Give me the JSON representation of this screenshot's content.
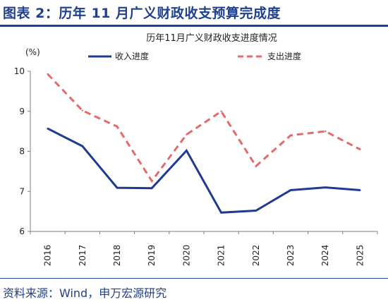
{
  "header": {
    "title": "图表 2：历年 11 月广义财政收支预算完成度"
  },
  "footer": {
    "source": "资料来源：Wind，申万宏源研究"
  },
  "colors": {
    "income": "#1f3a93",
    "expense": "#e46b6b",
    "header": "#1f3f8f"
  },
  "chart_data": {
    "type": "line",
    "title": "历年11月广义财政收支进度情况",
    "yunit": "(%)",
    "ylim": [
      6,
      10
    ],
    "yticks": [
      6,
      7,
      8,
      9,
      10
    ],
    "grid": false,
    "legend_position": "top",
    "x": [
      "2016",
      "2017",
      "2018",
      "2019",
      "2020",
      "2021",
      "2022",
      "2023",
      "2024",
      "2025"
    ],
    "series": [
      {
        "name": "收入进度",
        "style": "solid",
        "values": [
          8.57,
          8.13,
          7.09,
          7.08,
          8.02,
          6.47,
          6.52,
          7.03,
          7.1,
          7.03
        ]
      },
      {
        "name": "支出进度",
        "style": "dashed",
        "values": [
          9.93,
          9.02,
          8.62,
          7.26,
          8.42,
          9.0,
          7.63,
          8.4,
          8.5,
          8.05
        ]
      }
    ]
  }
}
